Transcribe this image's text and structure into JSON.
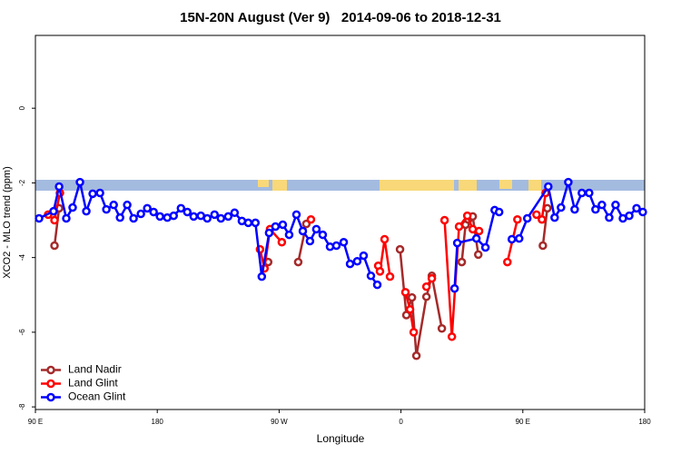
{
  "chart_data": {
    "type": "line",
    "title": "15N-20N August (Ver 9)   2014-09-06 to 2018-12-31",
    "xlabel": "Longitude",
    "ylabel": "XCO2 - MLO trend (ppm)",
    "xlim": [
      90,
      540
    ],
    "ylim": [
      -8.07,
      1.95
    ],
    "xticks": [
      {
        "value": 90,
        "label": "90 E"
      },
      {
        "value": 180,
        "label": "180"
      },
      {
        "value": 270,
        "label": "90 W"
      },
      {
        "value": 360,
        "label": "0"
      },
      {
        "value": 450,
        "label": "90 E"
      },
      {
        "value": 540,
        "label": "180"
      }
    ],
    "yticks": [
      0,
      -2,
      -4,
      -6,
      -8
    ],
    "legend": "bottom-left",
    "series": [
      {
        "name": "Land Nadir",
        "color": "#a52a2a",
        "x": [
          104.1,
          107.5,
          null,
          261.9,
          null,
          284.1,
          290.1,
          null,
          359.3,
          364.0,
          368.1,
          371.4,
          378.8,
          382.8,
          390.2,
          null,
          404.9,
          407.7,
          409.7,
          413.0,
          417.1,
          null,
          464.8,
          468.1
        ],
        "values": [
          -3.68,
          -2.68,
          null,
          -4.12,
          null,
          -4.12,
          -3.1,
          null,
          -3.78,
          -5.54,
          -5.07,
          -6.63,
          -5.05,
          -4.49,
          -5.9,
          null,
          -4.12,
          -3.12,
          -2.98,
          -2.9,
          -3.92,
          null,
          -3.68,
          -2.68
        ]
      },
      {
        "name": "Land Glint",
        "color": "#ff0000",
        "x": [
          99.4,
          104.1,
          108.1,
          null,
          255.9,
          259.2,
          263.3,
          272.0,
          null,
          293.5,
          null,
          343.2,
          344.5,
          347.9,
          351.9,
          null,
          363.3,
          366.7,
          369.4,
          null,
          378.8,
          382.8,
          null,
          392.2,
          397.6,
          402.9,
          409.0,
          413.0,
          417.7,
          null,
          438.6,
          446.0,
          null,
          460.1,
          464.1,
          466.8
        ],
        "values": [
          -2.85,
          -3.0,
          -2.27,
          null,
          -3.78,
          -4.29,
          -3.24,
          -3.59,
          null,
          -2.98,
          null,
          -4.22,
          -4.37,
          -3.51,
          -4.51,
          null,
          -4.93,
          -5.39,
          -6.0,
          null,
          -4.78,
          -4.56,
          null,
          -3.0,
          -6.12,
          -3.17,
          -2.88,
          -3.24,
          -3.29,
          null,
          -4.12,
          -2.98,
          null,
          -2.85,
          -2.98,
          -2.27
        ]
      },
      {
        "name": "Ocean Glint",
        "color": "#0000ff",
        "x": [
          92.7,
          103.4,
          107.5,
          112.8,
          117.5,
          122.9,
          127.6,
          132.3,
          137.7,
          142.4,
          147.8,
          152.5,
          157.8,
          162.5,
          167.9,
          172.6,
          177.3,
          182.0,
          187.4,
          192.1,
          197.5,
          202.2,
          206.9,
          212.2,
          216.9,
          222.3,
          227.0,
          232.4,
          237.1,
          242.5,
          247.2,
          252.5,
          257.2,
          262.6,
          267.3,
          272.7,
          277.4,
          282.8,
          287.5,
          292.8,
          297.5,
          302.2,
          307.6,
          312.3,
          317.7,
          322.4,
          327.7,
          332.4,
          337.8,
          342.5,
          null,
          399.6,
          401.6,
          415.7,
          422.4,
          429.2,
          432.5,
          null,
          441.9,
          447.3,
          453.3,
          468.8,
          473.5,
          478.2,
          483.6,
          488.3,
          493.6,
          499.0,
          503.7,
          508.4,
          513.8,
          518.5,
          523.9,
          528.6,
          534.0,
          538.6
        ],
        "values": [
          -2.95,
          -2.76,
          -2.1,
          -2.95,
          -2.66,
          -1.98,
          -2.76,
          -2.29,
          -2.27,
          -2.71,
          -2.59,
          -2.93,
          -2.59,
          -2.95,
          -2.83,
          -2.68,
          -2.78,
          -2.9,
          -2.93,
          -2.88,
          -2.68,
          -2.78,
          -2.9,
          -2.88,
          -2.95,
          -2.85,
          -2.95,
          -2.9,
          -2.8,
          -3.02,
          -3.07,
          -3.07,
          -4.51,
          -3.34,
          -3.17,
          -3.12,
          -3.39,
          -2.85,
          -3.29,
          -3.56,
          -3.24,
          -3.39,
          -3.71,
          -3.68,
          -3.59,
          -4.17,
          -4.1,
          -3.95,
          -4.49,
          -4.73,
          null,
          -4.83,
          -3.61,
          -3.49,
          -3.73,
          -2.73,
          -2.78,
          null,
          -3.51,
          -3.49,
          -2.95,
          -2.1,
          -2.93,
          -2.66,
          -1.98,
          -2.71,
          -2.27,
          -2.27,
          -2.71,
          -2.59,
          -2.93,
          -2.59,
          -2.95,
          -2.88,
          -2.68,
          -2.78
        ]
      }
    ]
  }
}
